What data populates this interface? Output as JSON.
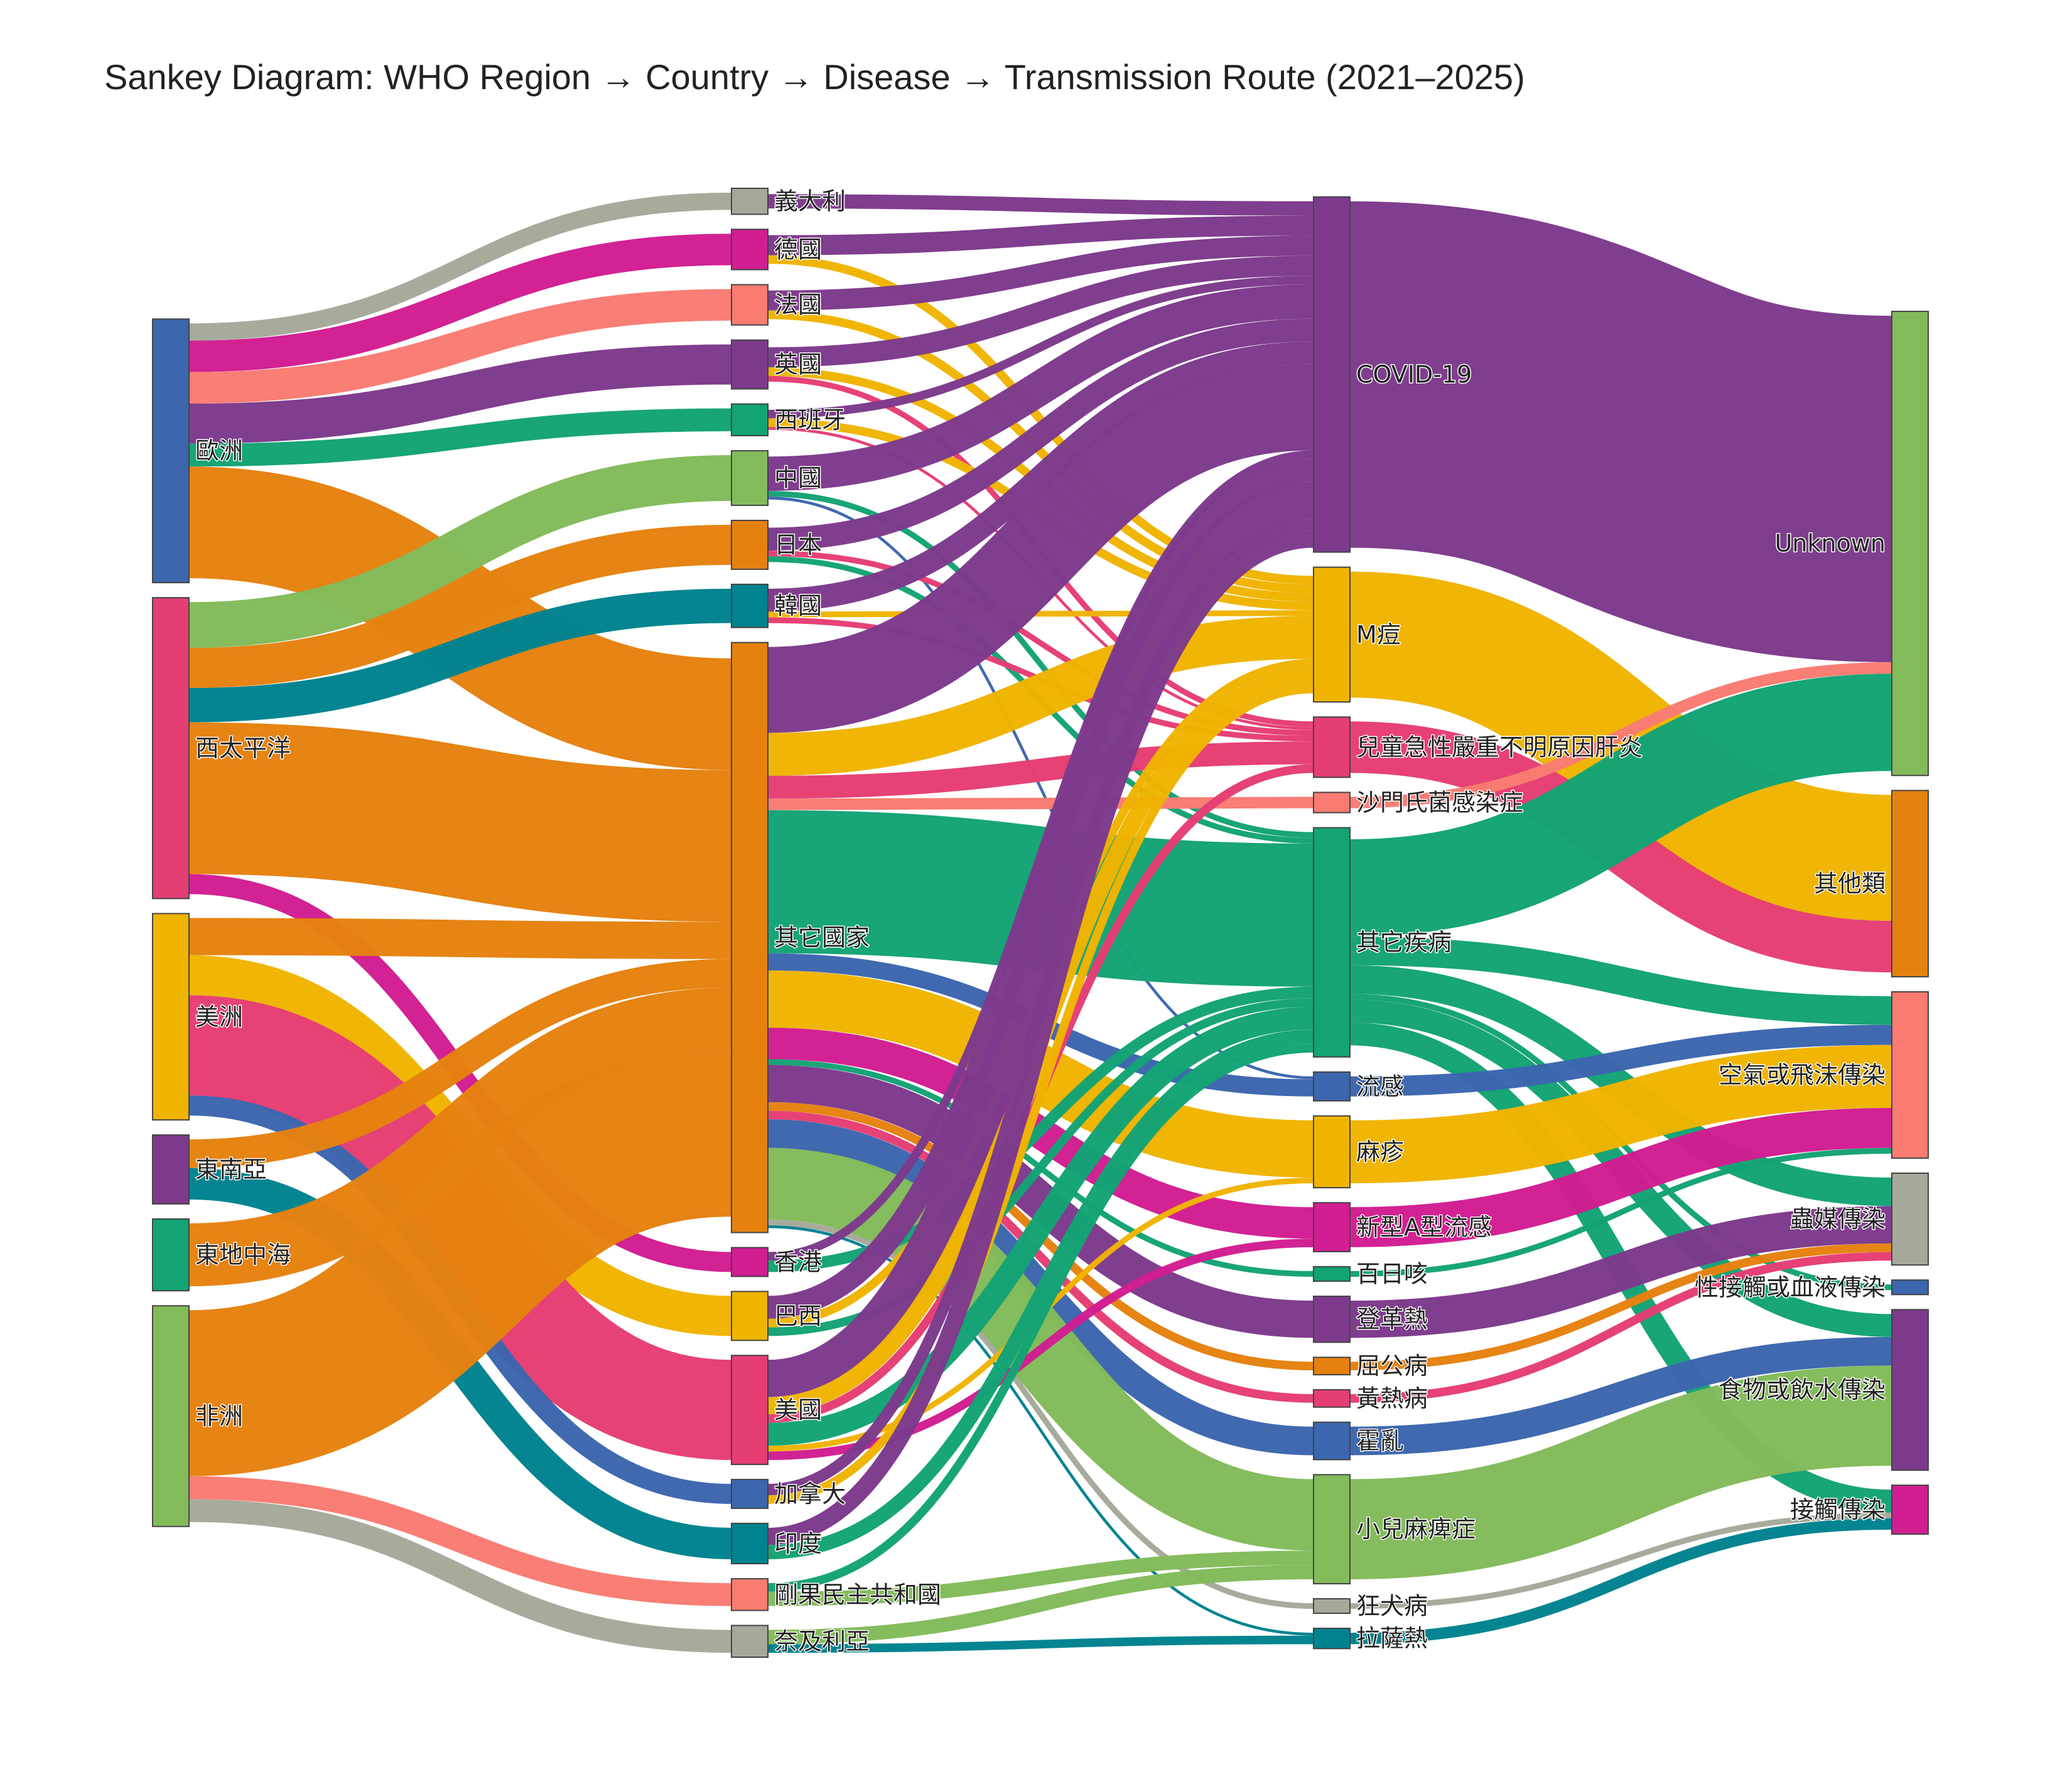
{
  "title": "Sankey Diagram: WHO Region → Country → Disease → Transmission Route (2021–2025)",
  "chart_data": {
    "type": "sankey",
    "columns": [
      [
        {
          "id": "歐洲",
          "color": "#3C66AE"
        },
        {
          "id": "西太平洋",
          "color": "#E53E73"
        },
        {
          "id": "美洲",
          "color": "#F0B400"
        },
        {
          "id": "東南亞",
          "color": "#7D3A8C"
        },
        {
          "id": "東地中海",
          "color": "#13A374"
        },
        {
          "id": "非洲",
          "color": "#83BB5A"
        }
      ],
      [
        {
          "id": "義大利",
          "color": "#A5A99A"
        },
        {
          "id": "德國",
          "color": "#D11E91"
        },
        {
          "id": "法國",
          "color": "#F97B72"
        },
        {
          "id": "英國",
          "color": "#7D3A8C"
        },
        {
          "id": "西班牙",
          "color": "#13A374"
        },
        {
          "id": "中國",
          "color": "#83BB5A"
        },
        {
          "id": "日本",
          "color": "#E5820F"
        },
        {
          "id": "韓國",
          "color": "#00838F"
        },
        {
          "id": "其它國家",
          "color": "#E5820F"
        },
        {
          "id": "香港",
          "color": "#D11E91"
        },
        {
          "id": "巴西",
          "color": "#F0B400"
        },
        {
          "id": "美國",
          "color": "#E53E73"
        },
        {
          "id": "加拿大",
          "color": "#3C66AE"
        },
        {
          "id": "印度",
          "color": "#00838F"
        },
        {
          "id": "剛果民主共和國",
          "color": "#F97B72"
        },
        {
          "id": "奈及利亞",
          "color": "#A5A99A"
        }
      ],
      [
        {
          "id": "COVID-19",
          "color": "#7D3A8C"
        },
        {
          "id": "M痘",
          "color": "#F0B400"
        },
        {
          "id": "兒童急性嚴重不明原因肝炎",
          "color": "#E53E73"
        },
        {
          "id": "沙門氏菌感染症",
          "color": "#F97B72"
        },
        {
          "id": "其它疾病",
          "color": "#13A374"
        },
        {
          "id": "流感",
          "color": "#3C66AE"
        },
        {
          "id": "麻疹",
          "color": "#F0B400"
        },
        {
          "id": "新型A型流感",
          "color": "#D11E91"
        },
        {
          "id": "百日咳",
          "color": "#13A374"
        },
        {
          "id": "登革熱",
          "color": "#7D3A8C"
        },
        {
          "id": "屈公病",
          "color": "#E5820F"
        },
        {
          "id": "黃熱病",
          "color": "#E53E73"
        },
        {
          "id": "霍亂",
          "color": "#3C66AE"
        },
        {
          "id": "小兒麻痺症",
          "color": "#83BB5A"
        },
        {
          "id": "狂犬病",
          "color": "#A5A99A"
        },
        {
          "id": "拉薩熱",
          "color": "#00838F"
        }
      ],
      [
        {
          "id": "Unknown",
          "color": "#83BB5A"
        },
        {
          "id": "其他類",
          "color": "#E5820F"
        },
        {
          "id": "空氣或飛沫傳染",
          "color": "#F97B72"
        },
        {
          "id": "蟲媒傳染",
          "color": "#A5A99A"
        },
        {
          "id": "性接觸或血液傳染",
          "color": "#3C66AE"
        },
        {
          "id": "食物或飲水傳染",
          "color": "#7D3A8C"
        },
        {
          "id": "接觸傳染",
          "color": "#D11E91"
        }
      ]
    ],
    "links": [
      {
        "source": "歐洲",
        "target": "義大利",
        "value": 6
      },
      {
        "source": "歐洲",
        "target": "德國",
        "value": 11
      },
      {
        "source": "歐洲",
        "target": "法國",
        "value": 11
      },
      {
        "source": "歐洲",
        "target": "英國",
        "value": 14
      },
      {
        "source": "歐洲",
        "target": "西班牙",
        "value": 8
      },
      {
        "source": "歐洲",
        "target": "其它國家",
        "value": 39
      },
      {
        "source": "西太平洋",
        "target": "中國",
        "value": 16
      },
      {
        "source": "西太平洋",
        "target": "日本",
        "value": 14
      },
      {
        "source": "西太平洋",
        "target": "韓國",
        "value": 12
      },
      {
        "source": "西太平洋",
        "target": "其它國家",
        "value": 53
      },
      {
        "source": "西太平洋",
        "target": "香港",
        "value": 7
      },
      {
        "source": "美洲",
        "target": "其它國家",
        "value": 13
      },
      {
        "source": "美洲",
        "target": "巴西",
        "value": 14
      },
      {
        "source": "美洲",
        "target": "美國",
        "value": 35
      },
      {
        "source": "美洲",
        "target": "加拿大",
        "value": 7
      },
      {
        "source": "美洲",
        "target": "印度",
        "value": 0
      },
      {
        "source": "東南亞",
        "target": "其它國家",
        "value": 10
      },
      {
        "source": "東南亞",
        "target": "印度",
        "value": 11
      },
      {
        "source": "東地中海",
        "target": "其它國家",
        "value": 22
      },
      {
        "source": "非洲",
        "target": "其它國家",
        "value": 58
      },
      {
        "source": "非洲",
        "target": "剛果民主共和國",
        "value": 8
      },
      {
        "source": "非洲",
        "target": "奈及利亞",
        "value": 8
      },
      {
        "source": "義大利",
        "target": "COVID-19",
        "value": 5
      },
      {
        "source": "德國",
        "target": "COVID-19",
        "value": 7
      },
      {
        "source": "德國",
        "target": "M痘",
        "value": 3
      },
      {
        "source": "法國",
        "target": "COVID-19",
        "value": 7
      },
      {
        "source": "法國",
        "target": "M痘",
        "value": 3
      },
      {
        "source": "英國",
        "target": "COVID-19",
        "value": 7
      },
      {
        "source": "英國",
        "target": "M痘",
        "value": 3
      },
      {
        "source": "英國",
        "target": "兒童急性嚴重不明原因肝炎",
        "value": 2
      },
      {
        "source": "西班牙",
        "target": "COVID-19",
        "value": 3
      },
      {
        "source": "西班牙",
        "target": "M痘",
        "value": 3
      },
      {
        "source": "西班牙",
        "target": "兒童急性嚴重不明原因肝炎",
        "value": 1
      },
      {
        "source": "中國",
        "target": "COVID-19",
        "value": 12
      },
      {
        "source": "中國",
        "target": "其它疾病",
        "value": 2
      },
      {
        "source": "中國",
        "target": "流感",
        "value": 1
      },
      {
        "source": "日本",
        "target": "COVID-19",
        "value": 8
      },
      {
        "source": "日本",
        "target": "兒童急性嚴重不明原因肝炎",
        "value": 2
      },
      {
        "source": "日本",
        "target": "其它疾病",
        "value": 2
      },
      {
        "source": "韓國",
        "target": "COVID-19",
        "value": 8
      },
      {
        "source": "韓國",
        "target": "M痘",
        "value": 2
      },
      {
        "source": "韓國",
        "target": "兒童急性嚴重不明原因肝炎",
        "value": 2
      },
      {
        "source": "其它國家",
        "target": "COVID-19",
        "value": 30
      },
      {
        "source": "其它國家",
        "target": "M痘",
        "value": 15
      },
      {
        "source": "其它國家",
        "target": "兒童急性嚴重不明原因肝炎",
        "value": 8
      },
      {
        "source": "其它國家",
        "target": "沙門氏菌感染症",
        "value": 4
      },
      {
        "source": "其它國家",
        "target": "其它疾病",
        "value": 50
      },
      {
        "source": "其它國家",
        "target": "流感",
        "value": 6
      },
      {
        "source": "其它國家",
        "target": "麻疹",
        "value": 20
      },
      {
        "source": "其它國家",
        "target": "新型A型流感",
        "value": 11
      },
      {
        "source": "其它國家",
        "target": "百日咳",
        "value": 2
      },
      {
        "source": "其它國家",
        "target": "登革熱",
        "value": 13
      },
      {
        "source": "其它國家",
        "target": "屈公病",
        "value": 3
      },
      {
        "source": "其它國家",
        "target": "黃熱病",
        "value": 3
      },
      {
        "source": "其它國家",
        "target": "霍亂",
        "value": 10
      },
      {
        "source": "其它國家",
        "target": "小兒麻痺症",
        "value": 25
      },
      {
        "source": "其它國家",
        "target": "狂犬病",
        "value": 2
      },
      {
        "source": "其它國家",
        "target": "拉薩熱",
        "value": 1
      },
      {
        "source": "香港",
        "target": "其它疾病",
        "value": 4
      },
      {
        "source": "香港",
        "target": "COVID-19",
        "value": 3
      },
      {
        "source": "巴西",
        "target": "COVID-19",
        "value": 8
      },
      {
        "source": "巴西",
        "target": "M痘",
        "value": 3
      },
      {
        "source": "巴西",
        "target": "其它疾病",
        "value": 3
      },
      {
        "source": "美國",
        "target": "COVID-19",
        "value": 13
      },
      {
        "source": "美國",
        "target": "M痘",
        "value": 6
      },
      {
        "source": "美國",
        "target": "其它疾病",
        "value": 8
      },
      {
        "source": "美國",
        "target": "新型A型流感",
        "value": 3
      },
      {
        "source": "美國",
        "target": "麻疹",
        "value": 2
      },
      {
        "source": "美國",
        "target": "兒童急性嚴重不明原因肝炎",
        "value": 3
      },
      {
        "source": "加拿大",
        "target": "COVID-19",
        "value": 4
      },
      {
        "source": "加拿大",
        "target": "M痘",
        "value": 3
      },
      {
        "source": "印度",
        "target": "COVID-19",
        "value": 6
      },
      {
        "source": "印度",
        "target": "其它疾病",
        "value": 5
      },
      {
        "source": "剛果民主共和國",
        "target": "其它疾病",
        "value": 3
      },
      {
        "source": "剛果民主共和國",
        "target": "小兒麻痺症",
        "value": 5
      },
      {
        "source": "奈及利亞",
        "target": "小兒麻痺症",
        "value": 5
      },
      {
        "source": "奈及利亞",
        "target": "拉薩熱",
        "value": 3
      },
      {
        "source": "COVID-19",
        "target": "Unknown",
        "value": 121
      },
      {
        "source": "M痘",
        "target": "其他類",
        "value": 44
      },
      {
        "source": "M痘",
        "target": "Unknown",
        "value": 0
      },
      {
        "source": "兒童急性嚴重不明原因肝炎",
        "target": "其他類",
        "value": 18
      },
      {
        "source": "沙門氏菌感染症",
        "target": "Unknown",
        "value": 4
      },
      {
        "source": "其它疾病",
        "target": "Unknown",
        "value": 34
      },
      {
        "source": "其它疾病",
        "target": "空氣或飛沫傳染",
        "value": 10
      },
      {
        "source": "其它疾病",
        "target": "蟲媒傳染",
        "value": 10
      },
      {
        "source": "其它疾病",
        "target": "性接觸或血液傳染",
        "value": 2
      },
      {
        "source": "其它疾病",
        "target": "食物或飲水傳染",
        "value": 8
      },
      {
        "source": "其它疾病",
        "target": "接觸傳染",
        "value": 8
      },
      {
        "source": "流感",
        "target": "空氣或飛沫傳染",
        "value": 7
      },
      {
        "source": "麻疹",
        "target": "空氣或飛沫傳染",
        "value": 22
      },
      {
        "source": "新型A型流感",
        "target": "空氣或飛沫傳染",
        "value": 14
      },
      {
        "source": "百日咳",
        "target": "空氣或飛沫傳染",
        "value": 2
      },
      {
        "source": "登革熱",
        "target": "蟲媒傳染",
        "value": 13
      },
      {
        "source": "屈公病",
        "target": "蟲媒傳染",
        "value": 3
      },
      {
        "source": "黃熱病",
        "target": "蟲媒傳染",
        "value": 3
      },
      {
        "source": "霍亂",
        "target": "食物或飲水傳染",
        "value": 10
      },
      {
        "source": "小兒麻痺症",
        "target": "食物或飲水傳染",
        "value": 35
      },
      {
        "source": "狂犬病",
        "target": "接觸傳染",
        "value": 2
      },
      {
        "source": "拉薩熱",
        "target": "接觸傳染",
        "value": 4
      }
    ]
  }
}
